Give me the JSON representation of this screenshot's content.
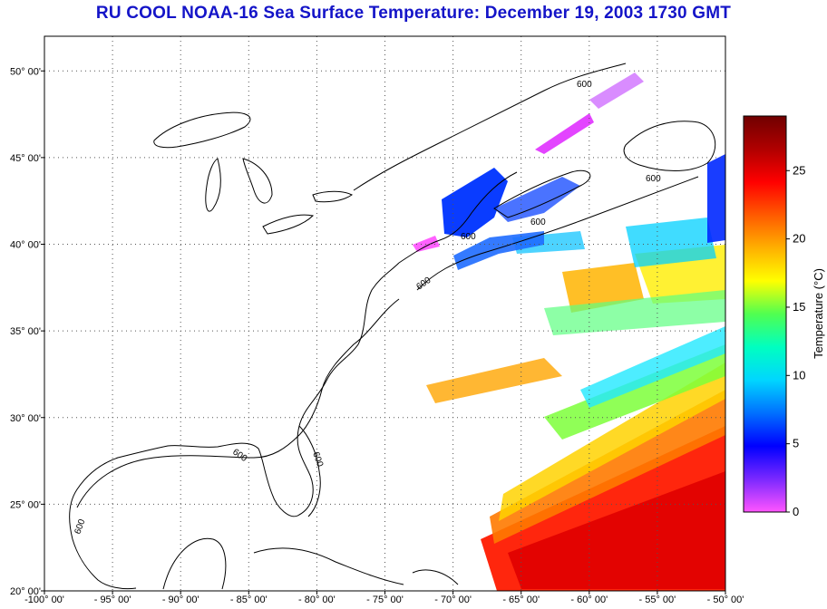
{
  "title": "RU COOL  NOAA-16  Sea Surface Temperature:  December 19, 2003 1730 GMT",
  "map": {
    "lon_range": [
      -100,
      -50
    ],
    "lat_range": [
      20,
      52
    ],
    "lon_ticks": [
      {
        "value": -100,
        "label": "-100° 00'"
      },
      {
        "value": -95,
        "label": "- 95° 00'"
      },
      {
        "value": -90,
        "label": "- 90° 00'"
      },
      {
        "value": -85,
        "label": "- 85° 00'"
      },
      {
        "value": -80,
        "label": "- 80° 00'"
      },
      {
        "value": -75,
        "label": "- 75° 00'"
      },
      {
        "value": -70,
        "label": "- 70° 00'"
      },
      {
        "value": -65,
        "label": "- 65° 00'"
      },
      {
        "value": -60,
        "label": "- 60° 00'"
      },
      {
        "value": -55,
        "label": "- 55° 00'"
      },
      {
        "value": -50,
        "label": "- 50° 00'"
      }
    ],
    "lat_ticks": [
      {
        "value": 20,
        "label": "20° 00'"
      },
      {
        "value": 25,
        "label": "25° 00'"
      },
      {
        "value": 30,
        "label": "30° 00'"
      },
      {
        "value": 35,
        "label": "35° 00'"
      },
      {
        "value": 40,
        "label": "40° 00'"
      },
      {
        "value": 45,
        "label": "45° 00'"
      },
      {
        "value": 50,
        "label": "50° 00'"
      }
    ],
    "contour_label": "600",
    "grid": true
  },
  "colorbar": {
    "label": "Temperature (°C)",
    "range": [
      0,
      29
    ],
    "ticks": [
      {
        "value": 0,
        "label": "0"
      },
      {
        "value": 5,
        "label": "5"
      },
      {
        "value": 10,
        "label": "10"
      },
      {
        "value": 15,
        "label": "15"
      },
      {
        "value": 20,
        "label": "20"
      },
      {
        "value": 25,
        "label": "25"
      }
    ],
    "colors": [
      "#ff55ff",
      "#7a28ff",
      "#0000ff",
      "#0070ff",
      "#00d6ff",
      "#00ffc0",
      "#50ff50",
      "#ffff00",
      "#ffb000",
      "#ff5a00",
      "#ff0000",
      "#b00000",
      "#700000"
    ]
  }
}
